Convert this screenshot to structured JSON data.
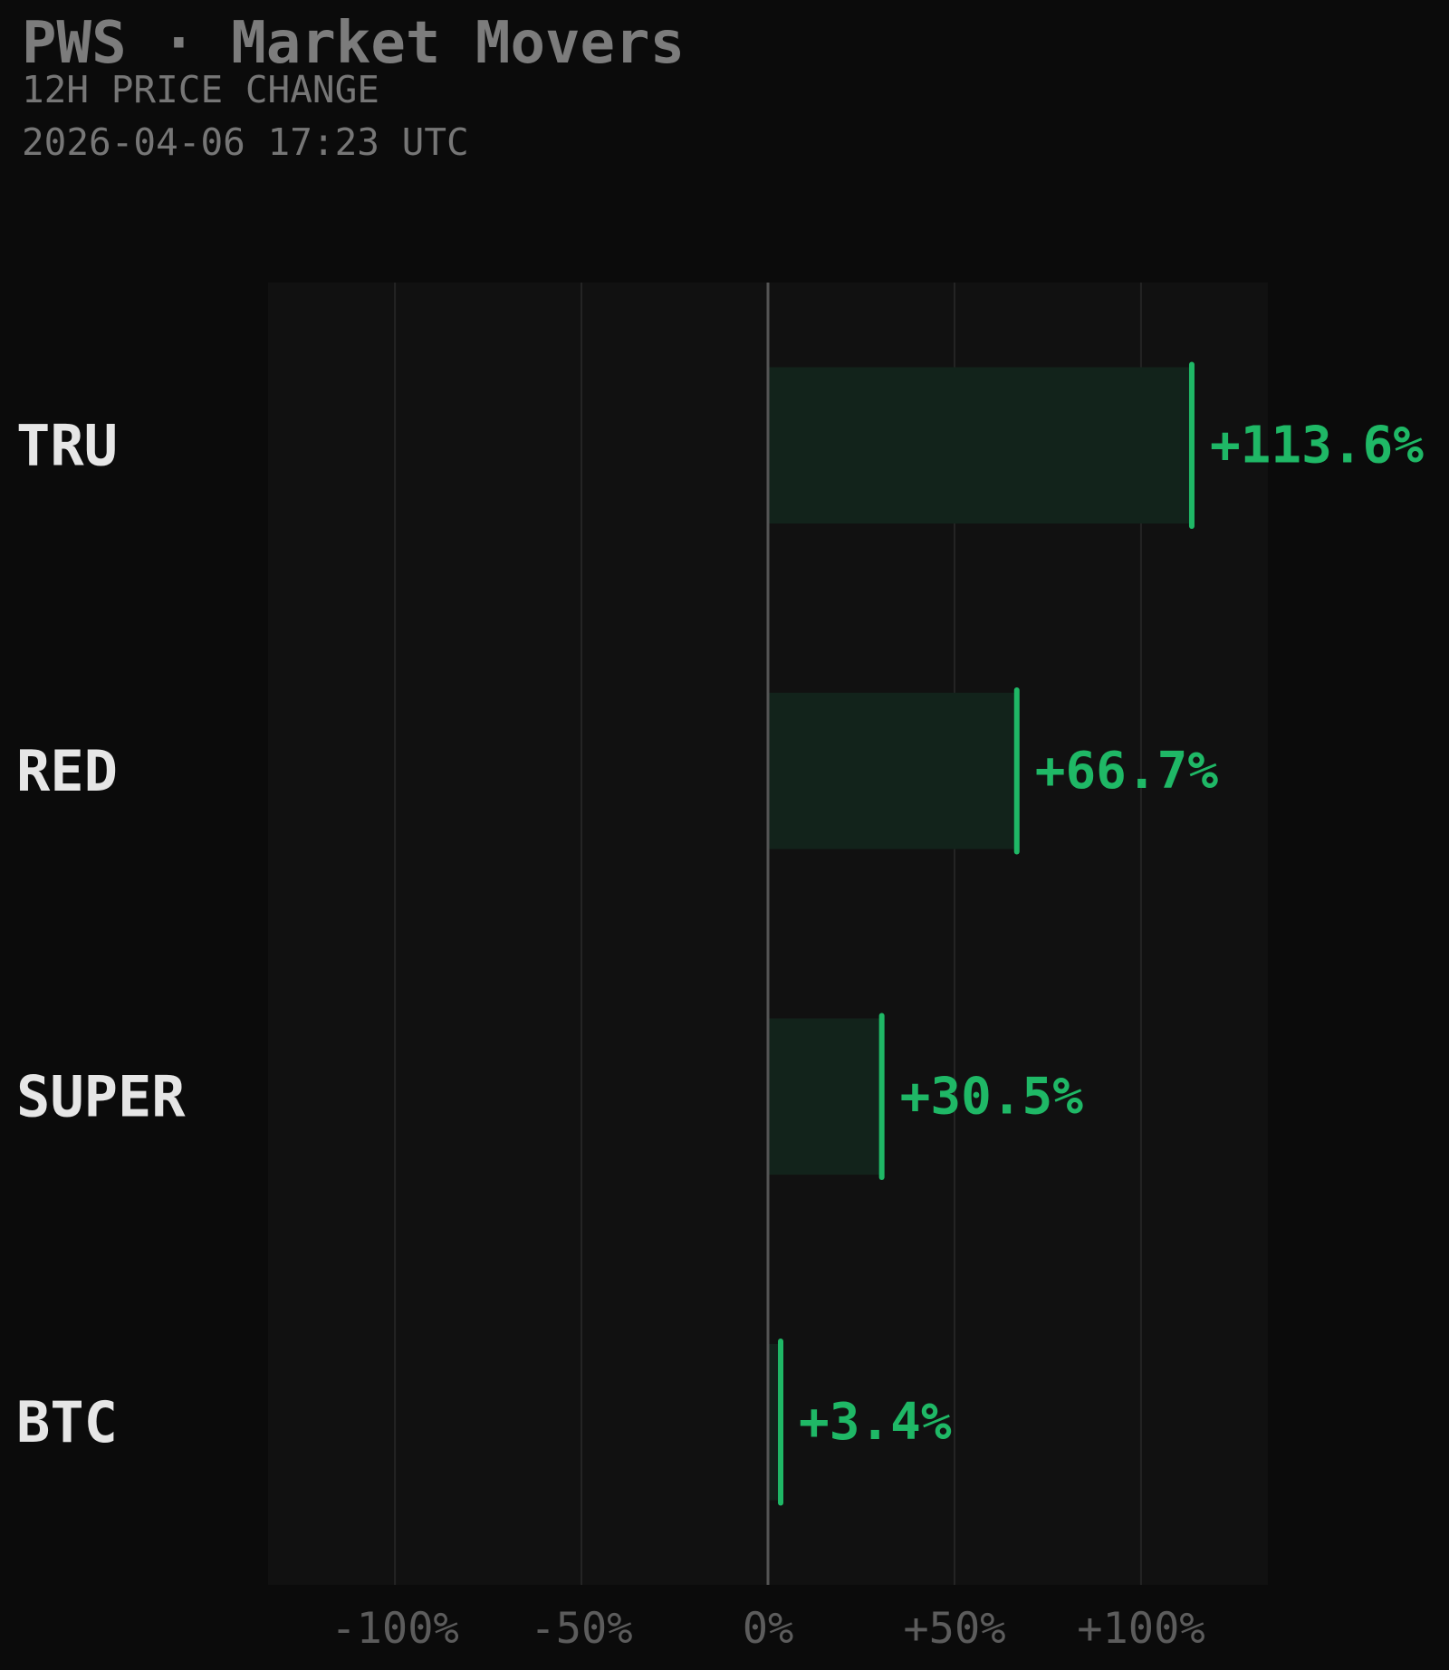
{
  "header": {
    "title": "PWS · Market Movers",
    "subtitle": "12H PRICE CHANGE",
    "timestamp": "2026-04-06 17:23 UTC"
  },
  "colors": {
    "background": "#0b0b0b",
    "plot_background": "#111111",
    "grid": "#242424",
    "zero_line": "#555555",
    "positive": "#1fb866",
    "positive_fill": "#12231b",
    "ticker_text": "#e6e6e6",
    "muted_text": "#767676"
  },
  "chart_data": {
    "type": "bar",
    "orientation": "horizontal",
    "title": "PWS · Market Movers",
    "subtitle": "12H PRICE CHANGE",
    "categories": [
      "TRU",
      "RED",
      "SUPER",
      "BTC"
    ],
    "values": [
      113.6,
      66.7,
      30.5,
      3.4
    ],
    "value_labels": [
      "+113.6%",
      "+66.7%",
      "+30.5%",
      "+3.4%"
    ],
    "xlim": [
      -134,
      134
    ],
    "xticks": [
      -100,
      -50,
      0,
      50,
      100
    ],
    "xtick_labels": [
      "-100%",
      "-50%",
      "0%",
      "+50%",
      "+100%"
    ],
    "xlabel": "",
    "ylabel": "",
    "grid": "vertical"
  }
}
